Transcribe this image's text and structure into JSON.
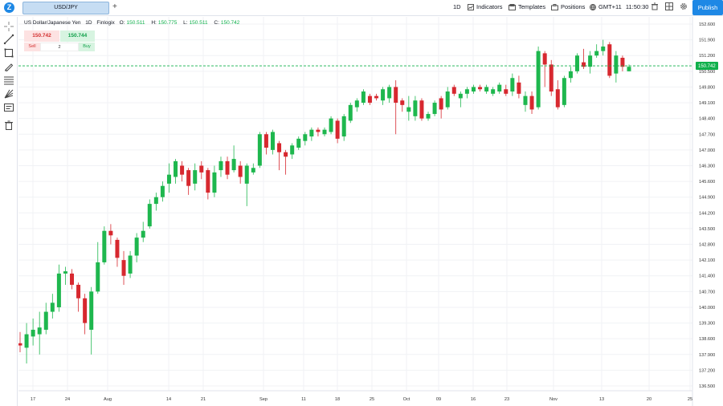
{
  "topbar": {
    "logo": "Z",
    "symbol_tab": "USD/JPY",
    "add_tab": "+",
    "interval": "1D",
    "indicators": "Indicators",
    "templates": "Templates",
    "positions": "Positions",
    "timezone": "GMT+11",
    "time": "11:50:30",
    "publish": "Publish"
  },
  "legend": {
    "title": "US Dollar/Japanese Yen",
    "interval": "1D",
    "source": "Finlogix",
    "o_label": "O:",
    "o_val": "150.511",
    "h_label": "H:",
    "h_val": "150.775",
    "l_label": "L:",
    "l_val": "150.511",
    "c_label": "C:",
    "c_val": "150.742"
  },
  "trade": {
    "sell_price": "150.742",
    "buy_price": "150.744",
    "sell_label": "Sell",
    "quantity": "2",
    "buy_label": "Buy"
  },
  "colors": {
    "up": "#1eb74e",
    "down": "#d7282f",
    "accent": "#1e88e5",
    "last_price_bg": "#0fb04b"
  },
  "chart_data": {
    "type": "candlestick",
    "symbol": "USD/JPY",
    "last_price": "150.742",
    "y_ticks": [
      "152.600",
      "151.900",
      "151.200",
      "150.500",
      "149.800",
      "149.100",
      "148.400",
      "147.700",
      "147.000",
      "146.300",
      "145.600",
      "144.900",
      "144.200",
      "143.500",
      "142.800",
      "142.100",
      "141.400",
      "140.700",
      "140.000",
      "139.300",
      "138.600",
      "137.900",
      "137.200",
      "136.500"
    ],
    "x_ticks": [
      "17",
      "24",
      "Aug",
      "14",
      "21",
      "Sep",
      "11",
      "18",
      "25",
      "Oct",
      "09",
      "16",
      "23",
      "Nov",
      "13",
      "20",
      "25"
    ],
    "candles": [
      [
        138.4,
        138.3,
        138.9,
        138.0
      ],
      [
        138.2,
        138.8,
        139.3,
        137.5
      ],
      [
        138.7,
        139.0,
        139.5,
        138.3
      ],
      [
        138.8,
        139.1,
        139.8,
        137.9
      ],
      [
        139.0,
        139.8,
        140.2,
        138.8
      ],
      [
        139.8,
        140.2,
        140.6,
        139.5
      ],
      [
        140.0,
        141.5,
        141.9,
        139.8
      ],
      [
        141.5,
        141.6,
        141.8,
        141.0
      ],
      [
        141.5,
        141.0,
        141.7,
        140.8
      ],
      [
        141.0,
        140.4,
        141.1,
        139.8
      ],
      [
        140.4,
        139.3,
        140.6,
        138.8
      ],
      [
        139.0,
        140.7,
        140.9,
        137.9
      ],
      [
        140.7,
        142.0,
        142.9,
        140.6
      ],
      [
        142.0,
        143.4,
        143.6,
        141.9
      ],
      [
        143.4,
        143.2,
        143.7,
        142.8
      ],
      [
        143.0,
        142.2,
        143.1,
        141.8
      ],
      [
        142.1,
        141.4,
        142.5,
        141.0
      ],
      [
        141.5,
        142.3,
        142.5,
        141.3
      ],
      [
        142.3,
        143.1,
        143.3,
        142.0
      ],
      [
        143.1,
        143.4,
        143.8,
        142.9
      ],
      [
        143.6,
        144.6,
        144.8,
        143.5
      ],
      [
        144.6,
        144.9,
        145.1,
        144.3
      ],
      [
        144.9,
        145.4,
        145.6,
        144.7
      ],
      [
        145.5,
        145.9,
        146.4,
        145.1
      ],
      [
        145.8,
        146.5,
        146.6,
        145.5
      ],
      [
        146.3,
        145.9,
        146.5,
        145.6
      ],
      [
        146.1,
        145.4,
        146.2,
        145.0
      ],
      [
        145.5,
        146.1,
        146.4,
        145.2
      ],
      [
        146.3,
        146.0,
        146.5,
        145.7
      ],
      [
        146.1,
        145.1,
        146.2,
        144.8
      ],
      [
        145.1,
        146.0,
        146.3,
        144.9
      ],
      [
        146.1,
        146.5,
        146.7,
        145.8
      ],
      [
        146.5,
        145.9,
        146.7,
        145.7
      ],
      [
        146.1,
        146.6,
        147.2,
        146.0
      ],
      [
        146.3,
        145.8,
        146.5,
        145.5
      ],
      [
        145.5,
        146.3,
        146.4,
        144.5
      ],
      [
        146.0,
        146.2,
        146.4,
        145.9
      ],
      [
        146.3,
        147.7,
        147.8,
        146.2
      ],
      [
        147.7,
        147.1,
        147.8,
        146.8
      ],
      [
        147.0,
        147.8,
        147.9,
        146.8
      ],
      [
        147.3,
        146.9,
        147.4,
        146.1
      ],
      [
        146.9,
        146.7,
        147.0,
        145.9
      ],
      [
        146.8,
        147.2,
        147.3,
        146.6
      ],
      [
        147.1,
        147.5,
        147.6,
        147.0
      ],
      [
        147.4,
        147.7,
        147.8,
        147.2
      ],
      [
        147.6,
        147.9,
        148.0,
        147.4
      ],
      [
        147.9,
        147.8,
        148.0,
        147.6
      ],
      [
        147.7,
        147.9,
        148.0,
        147.6
      ],
      [
        147.8,
        148.4,
        148.5,
        147.7
      ],
      [
        148.3,
        147.5,
        148.4,
        147.3
      ],
      [
        147.6,
        148.5,
        148.6,
        147.4
      ],
      [
        148.3,
        149.0,
        149.1,
        148.2
      ],
      [
        148.9,
        149.2,
        149.3,
        148.7
      ],
      [
        149.1,
        149.6,
        149.7,
        149.0
      ],
      [
        149.4,
        149.1,
        149.5,
        149.0
      ],
      [
        149.4,
        149.3,
        149.5,
        149.2
      ],
      [
        149.2,
        149.7,
        149.8,
        149.0
      ],
      [
        149.3,
        149.8,
        149.9,
        149.1
      ],
      [
        149.8,
        149.1,
        150.1,
        147.7
      ],
      [
        149.2,
        149.0,
        149.3,
        148.7
      ],
      [
        148.7,
        148.9,
        149.4,
        148.3
      ],
      [
        148.5,
        149.2,
        149.4,
        148.3
      ],
      [
        149.2,
        148.4,
        149.3,
        148.3
      ],
      [
        148.4,
        148.6,
        148.7,
        148.3
      ],
      [
        148.6,
        149.1,
        149.2,
        148.5
      ],
      [
        149.3,
        148.8,
        149.4,
        148.4
      ],
      [
        148.9,
        149.6,
        149.8,
        148.8
      ],
      [
        149.8,
        149.5,
        149.9,
        149.4
      ],
      [
        149.3,
        149.5,
        149.6,
        148.9
      ],
      [
        149.5,
        149.7,
        149.8,
        149.3
      ],
      [
        149.6,
        149.8,
        149.9,
        149.5
      ],
      [
        149.8,
        149.7,
        149.9,
        149.6
      ],
      [
        149.6,
        149.8,
        149.9,
        149.5
      ],
      [
        149.5,
        149.7,
        149.8,
        149.4
      ],
      [
        149.6,
        149.9,
        150.0,
        149.5
      ],
      [
        149.7,
        149.5,
        149.9,
        149.4
      ],
      [
        149.6,
        150.2,
        150.4,
        149.4
      ],
      [
        150.0,
        149.5,
        150.3,
        149.3
      ],
      [
        149.0,
        149.4,
        149.6,
        148.7
      ],
      [
        149.4,
        148.8,
        149.6,
        148.6
      ],
      [
        148.9,
        151.4,
        151.6,
        148.8
      ],
      [
        151.3,
        150.8,
        151.4,
        149.8
      ],
      [
        150.8,
        149.6,
        151.0,
        149.4
      ],
      [
        149.7,
        148.9,
        150.1,
        148.8
      ],
      [
        149.0,
        150.2,
        150.3,
        148.9
      ],
      [
        150.2,
        150.5,
        150.7,
        150.0
      ],
      [
        150.5,
        151.2,
        151.3,
        150.4
      ],
      [
        150.9,
        150.7,
        151.5,
        150.6
      ],
      [
        150.7,
        151.2,
        151.4,
        150.4
      ],
      [
        151.2,
        151.4,
        151.7,
        151.1
      ],
      [
        151.4,
        151.6,
        151.9,
        151.2
      ],
      [
        151.7,
        150.3,
        151.8,
        150.2
      ],
      [
        150.4,
        151.2,
        151.4,
        150.0
      ],
      [
        151.1,
        150.7,
        151.2,
        150.5
      ],
      [
        150.5,
        150.7,
        150.8,
        150.5
      ]
    ]
  }
}
